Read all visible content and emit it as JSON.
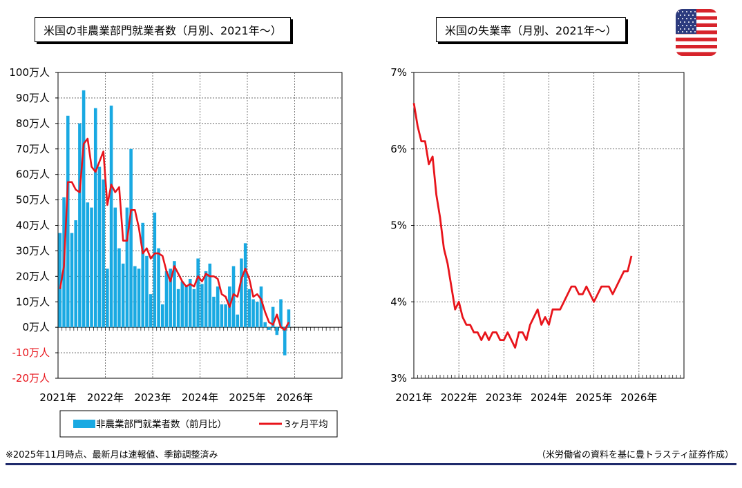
{
  "chart_data": [
    {
      "type": "bar",
      "title": "米国の非農業部門就業者数（月別、2021年～）",
      "y_tick_labels": [
        "100万人",
        "90万人",
        "80万人",
        "70万人",
        "60万人",
        "50万人",
        "40万人",
        "30万人",
        "20万人",
        "10万人",
        "0万人",
        "-10万人",
        "-20万人"
      ],
      "y_ticks": [
        100,
        90,
        80,
        70,
        60,
        50,
        40,
        30,
        20,
        10,
        0,
        -10,
        -20
      ],
      "ylim": [
        -20,
        100
      ],
      "x_tick_labels": [
        "2021年",
        "2022年",
        "2023年",
        "2024年",
        "2025年",
        "2026年"
      ],
      "grid": true,
      "legend_position": "bottom",
      "colors": {
        "bars": "#19a9e2",
        "line": "#e8141b",
        "negative_labels": "#e8141b"
      },
      "series": [
        {
          "name": "非農業部門就業者数（前月比）",
          "type": "bar",
          "values": [
            37,
            51,
            83,
            37,
            42,
            80,
            93,
            49,
            47,
            86,
            63,
            58,
            23,
            87,
            47,
            31,
            25,
            47,
            70,
            24,
            23,
            41,
            28,
            13,
            45,
            31,
            9,
            22,
            23,
            26,
            15,
            18,
            16,
            19,
            15,
            27,
            17,
            22,
            25,
            12,
            16,
            9,
            9,
            16,
            24,
            5,
            27,
            33,
            15,
            11,
            10,
            16,
            2,
            -1,
            8,
            -3,
            11,
            -11,
            7
          ],
          "x_labels": [
            "2021-01",
            "2021-02",
            "2021-03",
            "2021-04",
            "2021-05",
            "2021-06",
            "2021-07",
            "2021-08",
            "2021-09",
            "2021-10",
            "2021-11",
            "2021-12",
            "2022-01",
            "2022-02",
            "2022-03",
            "2022-04",
            "2022-05",
            "2022-06",
            "2022-07",
            "2022-08",
            "2022-09",
            "2022-10",
            "2022-11",
            "2022-12",
            "2023-01",
            "2023-02",
            "2023-03",
            "2023-04",
            "2023-05",
            "2023-06",
            "2023-07",
            "2023-08",
            "2023-09",
            "2023-10",
            "2023-11",
            "2023-12",
            "2024-01",
            "2024-02",
            "2024-03",
            "2024-04",
            "2024-05",
            "2024-06",
            "2024-07",
            "2024-08",
            "2024-09",
            "2024-10",
            "2024-11",
            "2024-12",
            "2025-01",
            "2025-02",
            "2025-03",
            "2025-04",
            "2025-05",
            "2025-06",
            "2025-07",
            "2025-08",
            "2025-09",
            "2025-10",
            "2025-11"
          ]
        },
        {
          "name": "3ヶ月平均",
          "type": "line",
          "values": [
            15,
            24,
            57,
            57,
            54,
            53,
            72,
            74,
            63,
            61,
            65,
            69,
            48,
            56,
            53,
            55,
            34,
            34,
            46,
            46,
            39,
            29,
            31,
            27,
            29,
            29,
            28,
            22,
            18,
            24,
            21,
            18,
            16,
            17,
            16,
            20,
            18,
            21,
            20,
            20,
            19,
            13,
            12,
            8,
            13,
            12,
            19,
            23,
            19,
            12,
            13,
            11,
            6,
            2,
            1,
            5,
            0,
            -1,
            2
          ]
        }
      ]
    },
    {
      "type": "line",
      "title": "米国の失業率（月別、2021年～）",
      "y_tick_labels": [
        "7%",
        "6%",
        "5%",
        "4%",
        "3%"
      ],
      "y_ticks": [
        7,
        6,
        5,
        4,
        3
      ],
      "ylim": [
        3,
        7
      ],
      "x_tick_labels": [
        "2021年",
        "2022年",
        "2023年",
        "2024年",
        "2025年",
        "2026年"
      ],
      "grid": true,
      "colors": {
        "line": "#e8141b"
      },
      "series": [
        {
          "type": "line",
          "values": [
            6.6,
            6.3,
            6.1,
            6.1,
            5.8,
            5.9,
            5.4,
            5.1,
            4.7,
            4.5,
            4.2,
            3.9,
            4.0,
            3.8,
            3.7,
            3.7,
            3.6,
            3.6,
            3.5,
            3.6,
            3.5,
            3.6,
            3.6,
            3.5,
            3.5,
            3.6,
            3.5,
            3.4,
            3.6,
            3.6,
            3.5,
            3.7,
            3.8,
            3.9,
            3.7,
            3.8,
            3.7,
            3.9,
            3.9,
            3.9,
            4.0,
            4.1,
            4.2,
            4.2,
            4.1,
            4.1,
            4.2,
            4.1,
            4.0,
            4.1,
            4.2,
            4.2,
            4.2,
            4.1,
            4.2,
            4.3,
            4.4,
            4.4,
            4.6
          ]
        }
      ]
    }
  ],
  "legend": {
    "bar_label": "非農業部門就業者数（前月比）",
    "line_label": "3ヶ月平均"
  },
  "footnote": "※2025年11月時点、最新月は速報値、季節調整済み",
  "source": "（米労働省の資料を基に豊トラスティ証券作成）",
  "flag_icon": "us-flag-icon"
}
